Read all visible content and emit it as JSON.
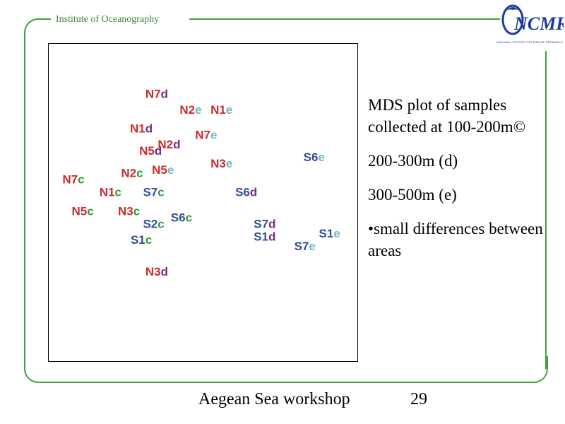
{
  "header": {
    "label": "Institute of Oceanography"
  },
  "logo": {
    "wordmark": "NCMR",
    "subtitle": "NATIONAL CENTRE FOR MARINE RESEARCH"
  },
  "info": {
    "line1": "MDS plot of samples collected at 100-200m©",
    "line2": "200-300m (d)",
    "line3": "300-500m (e)",
    "line4": "•small  differences between areas"
  },
  "footer": {
    "title": "Aegean Sea workshop",
    "page": "29"
  },
  "colors": {
    "N": "#cc2b2b",
    "S": "#2f4f9a",
    "c": "#2e9b2e",
    "d": "#7a2a8a",
    "e": "#6fb8c6",
    "frame": "#3fa33a"
  },
  "chart_data": {
    "type": "scatter",
    "title": "",
    "xlabel": "",
    "ylabel": "",
    "axes_visible": false,
    "grid": false,
    "xlim": [
      0,
      100
    ],
    "ylim": [
      0,
      100
    ],
    "points": [
      {
        "label": "N7",
        "suffix": "d",
        "x": 35,
        "y": 83
      },
      {
        "label": "N2",
        "suffix": "e",
        "x": 46,
        "y": 78
      },
      {
        "label": "N1",
        "suffix": "e",
        "x": 56,
        "y": 78
      },
      {
        "label": "N1",
        "suffix": "d",
        "x": 30,
        "y": 72
      },
      {
        "label": "N7",
        "suffix": "e",
        "x": 51,
        "y": 70
      },
      {
        "label": "N5",
        "suffix": "d",
        "x": 33,
        "y": 65
      },
      {
        "label": "N2",
        "suffix": "d",
        "x": 39,
        "y": 67
      },
      {
        "label": "N3",
        "suffix": "e",
        "x": 56,
        "y": 61
      },
      {
        "label": "S6",
        "suffix": "e",
        "x": 86,
        "y": 63
      },
      {
        "label": "N2",
        "suffix": "c",
        "x": 27,
        "y": 58
      },
      {
        "label": "N5",
        "suffix": "e",
        "x": 37,
        "y": 59
      },
      {
        "label": "N7",
        "suffix": "c",
        "x": 8,
        "y": 56
      },
      {
        "label": "N1",
        "suffix": "c",
        "x": 20,
        "y": 52
      },
      {
        "label": "S7",
        "suffix": "c",
        "x": 34,
        "y": 52
      },
      {
        "label": "S6",
        "suffix": "d",
        "x": 64,
        "y": 52
      },
      {
        "label": "N5",
        "suffix": "c",
        "x": 11,
        "y": 46
      },
      {
        "label": "N3",
        "suffix": "c",
        "x": 26,
        "y": 46
      },
      {
        "label": "S6",
        "suffix": "c",
        "x": 43,
        "y": 44
      },
      {
        "label": "S2",
        "suffix": "c",
        "x": 34,
        "y": 42
      },
      {
        "label": "S7",
        "suffix": "d",
        "x": 70,
        "y": 42
      },
      {
        "label": "S1",
        "suffix": "d",
        "x": 70,
        "y": 38
      },
      {
        "label": "S1",
        "suffix": "e",
        "x": 91,
        "y": 39
      },
      {
        "label": "S7",
        "suffix": "e",
        "x": 83,
        "y": 35
      },
      {
        "label": "S1",
        "suffix": "c",
        "x": 30,
        "y": 37
      },
      {
        "label": "N3",
        "suffix": "d",
        "x": 35,
        "y": 27
      }
    ]
  }
}
